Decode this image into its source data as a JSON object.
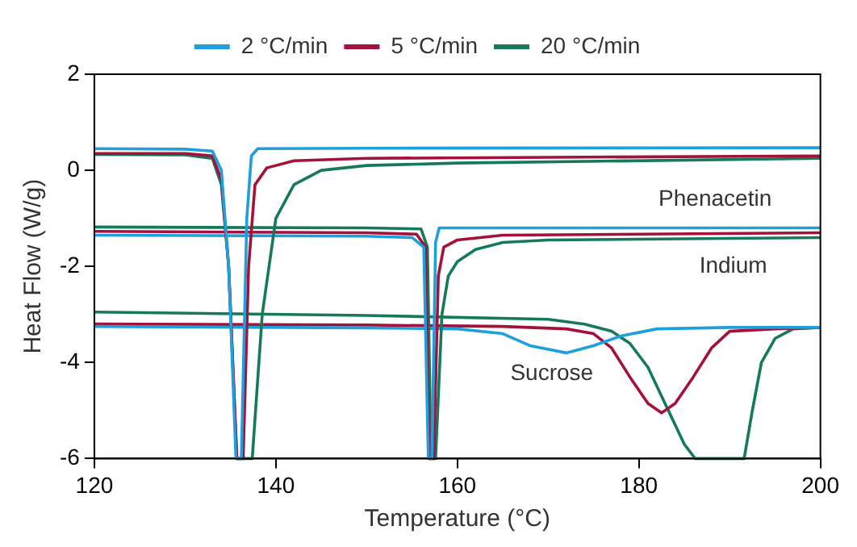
{
  "chart_data": {
    "type": "line",
    "xlabel": "Temperature (°C)",
    "ylabel": "Heat Flow (W/g)",
    "xlim": [
      120,
      200
    ],
    "xticks": [
      120,
      140,
      160,
      180,
      200
    ],
    "ylim": [
      -6,
      2
    ],
    "yticks": [
      -6,
      -4,
      -2,
      0,
      2
    ],
    "grid": false,
    "legend": "top",
    "marker": "none",
    "line_style": "solid",
    "annotations": [
      "Phenacetin",
      "Indium",
      "Sucrose"
    ],
    "series": [
      {
        "name": "2 °C/min",
        "color": "#1f9fdc",
        "x": [
          120,
          130,
          133,
          134,
          134.8,
          135.6,
          136.2,
          136.8,
          137.3,
          138,
          150,
          200
        ],
        "values": [
          0.45,
          0.44,
          0.4,
          0,
          -2,
          -6,
          -6,
          -1,
          0.3,
          0.45,
          0.46,
          0.47
        ]
      },
      {
        "name": "5 °C/min",
        "color": "#a3123b",
        "x": [
          120,
          130,
          133,
          134,
          134.8,
          135.7,
          136.4,
          137,
          137.7,
          139,
          142,
          150,
          200
        ],
        "values": [
          0.35,
          0.35,
          0.3,
          -0.2,
          -2,
          -6,
          -6,
          -2,
          -0.3,
          0.05,
          0.2,
          0.25,
          0.3
        ]
      },
      {
        "name": "20 °C/min",
        "color": "#167a5a",
        "x": [
          120,
          130,
          133,
          134,
          134.8,
          135.7,
          137.4,
          138.5,
          140,
          142,
          145,
          150,
          160,
          200
        ],
        "values": [
          0.33,
          0.32,
          0.25,
          -0.3,
          -2,
          -6,
          -6,
          -3,
          -1,
          -0.3,
          0,
          0.1,
          0.15,
          0.25
        ]
      },
      {
        "color": "#1f9fdc",
        "x": [
          120,
          150,
          155,
          156.3,
          156.8,
          157.2,
          157.6,
          158,
          160,
          200
        ],
        "values": [
          -1.35,
          -1.37,
          -1.4,
          -1.6,
          -6,
          -6,
          -1.5,
          -1.2,
          -1.2,
          -1.2
        ]
      },
      {
        "color": "#a3123b",
        "x": [
          120,
          150,
          155.5,
          156.5,
          156.9,
          157.4,
          157.9,
          158.5,
          160,
          165,
          200
        ],
        "values": [
          -1.27,
          -1.3,
          -1.33,
          -1.6,
          -6,
          -6,
          -2.2,
          -1.6,
          -1.45,
          -1.35,
          -1.3
        ]
      },
      {
        "color": "#167a5a",
        "x": [
          120,
          150,
          156,
          156.7,
          157.1,
          157.6,
          158.3,
          159,
          160,
          162,
          165,
          170,
          200
        ],
        "values": [
          -1.18,
          -1.2,
          -1.22,
          -1.6,
          -6,
          -6,
          -3,
          -2.2,
          -1.9,
          -1.65,
          -1.5,
          -1.45,
          -1.4
        ]
      },
      {
        "color": "#1f9fdc",
        "x": [
          120,
          150,
          160,
          165,
          168,
          172,
          175,
          178,
          182,
          190,
          200
        ],
        "values": [
          -3.25,
          -3.28,
          -3.3,
          -3.4,
          -3.65,
          -3.8,
          -3.65,
          -3.45,
          -3.3,
          -3.27,
          -3.27
        ]
      },
      {
        "color": "#a3123b",
        "x": [
          120,
          150,
          165,
          172,
          175,
          177,
          179,
          181,
          182.5,
          184,
          186,
          188,
          190,
          195,
          200
        ],
        "values": [
          -3.2,
          -3.22,
          -3.25,
          -3.3,
          -3.4,
          -3.7,
          -4.3,
          -4.85,
          -5.05,
          -4.85,
          -4.3,
          -3.7,
          -3.35,
          -3.3,
          -3.27
        ]
      },
      {
        "color": "#167a5a",
        "x": [
          120,
          150,
          170,
          174,
          177,
          179,
          181,
          183,
          185,
          186.2,
          191.6,
          192.5,
          193.5,
          195,
          197,
          200
        ],
        "values": [
          -2.95,
          -3.02,
          -3.1,
          -3.2,
          -3.35,
          -3.6,
          -4.1,
          -4.9,
          -5.7,
          -6,
          -6,
          -5,
          -4,
          -3.5,
          -3.3,
          -3.27
        ]
      }
    ]
  }
}
